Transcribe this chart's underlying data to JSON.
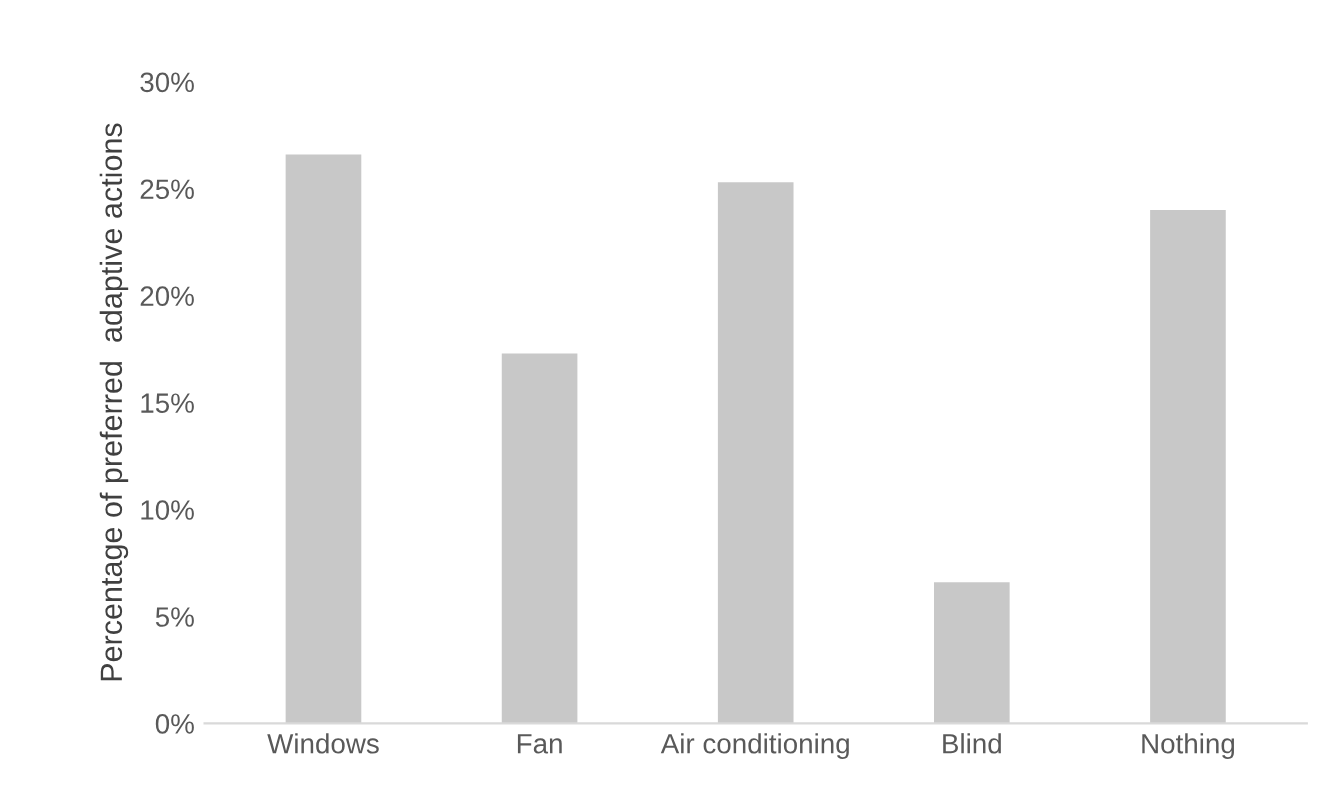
{
  "chart_data": {
    "type": "bar",
    "ylabel": "Percentage of preferred  adaptive actions",
    "categories": [
      "Windows",
      "Fan",
      "Air conditioning",
      "Blind",
      "Nothing"
    ],
    "values": [
      26.6,
      17.3,
      25.3,
      6.6,
      24.0
    ],
    "color": "#c8c8c8",
    "ylim": [
      0,
      30
    ],
    "yticks": [
      {
        "value": 0,
        "label": "0%"
      },
      {
        "value": 5,
        "label": "5%"
      },
      {
        "value": 10,
        "label": "10%"
      },
      {
        "value": 15,
        "label": "15%"
      },
      {
        "value": 20,
        "label": "20%"
      },
      {
        "value": 25,
        "label": "25%"
      },
      {
        "value": 30,
        "label": "30%"
      }
    ],
    "grid": false,
    "legend": false
  }
}
